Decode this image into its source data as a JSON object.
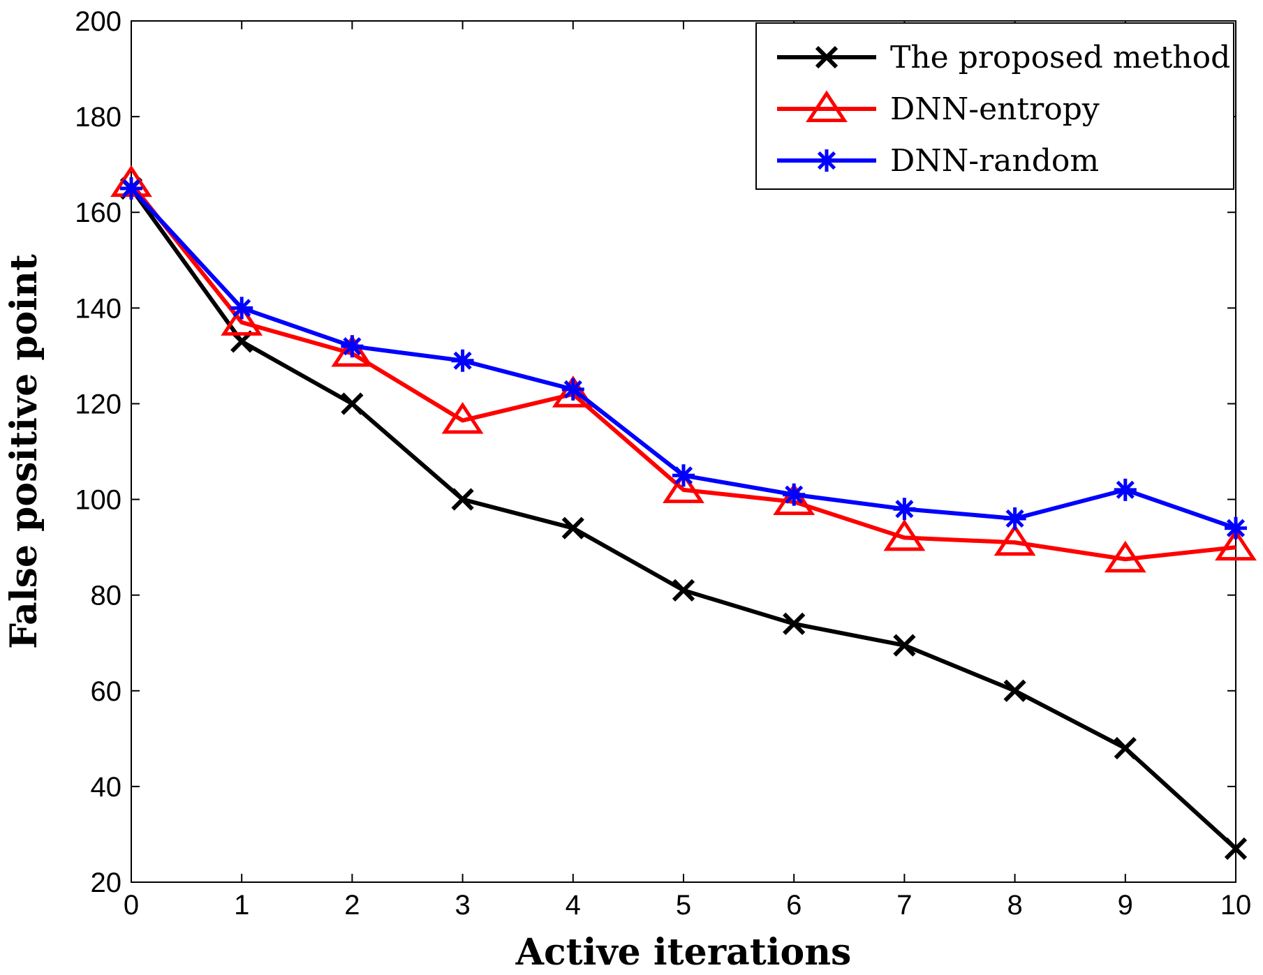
{
  "chart_data": {
    "type": "line",
    "xlabel": "Active iterations",
    "ylabel": "False positive point",
    "xlim": [
      0,
      10
    ],
    "ylim": [
      20,
      200
    ],
    "xticks": [
      0,
      1,
      2,
      3,
      4,
      5,
      6,
      7,
      8,
      9,
      10
    ],
    "yticks": [
      20,
      40,
      60,
      80,
      100,
      120,
      140,
      160,
      180,
      200
    ],
    "x": [
      0,
      1,
      2,
      3,
      4,
      5,
      6,
      7,
      8,
      9,
      10
    ],
    "grid": false,
    "legend_position": "top-right",
    "series": [
      {
        "name": "The proposed method",
        "color": "#000000",
        "marker": "x",
        "values": [
          165,
          133,
          120,
          100,
          94,
          81,
          74,
          69.5,
          60,
          48,
          27
        ]
      },
      {
        "name": "DNN-entropy",
        "color": "#ff0000",
        "marker": "triangle",
        "values": [
          166,
          137,
          130.5,
          116.5,
          122,
          102,
          99.5,
          92,
          91,
          87.5,
          90
        ]
      },
      {
        "name": "DNN-random",
        "color": "#0000ff",
        "marker": "asterisk",
        "values": [
          165,
          140,
          132,
          129,
          123,
          105,
          101,
          98,
          96,
          102,
          94
        ]
      }
    ]
  }
}
